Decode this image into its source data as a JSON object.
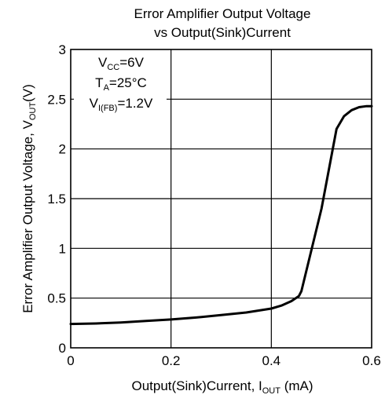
{
  "chart_data": {
    "type": "line",
    "title": [
      "Error Amplifier Output Voltage",
      "vs Output(Sink)Current"
    ],
    "xlabel": {
      "text": "Output(Sink)Current, I",
      "sub": "OUT",
      "suffix": " (mA)"
    },
    "ylabel": {
      "text": "Error Amplifier Output Voltage, V",
      "sub": "OUT",
      "suffix": "(V)"
    },
    "xlim": [
      0,
      0.6
    ],
    "ylim": [
      0,
      3
    ],
    "xticks": [
      0,
      0.2,
      0.4,
      0.6
    ],
    "xtick_labels": [
      "0",
      "0.2",
      "0.4",
      "0.6"
    ],
    "yticks": [
      0,
      0.5,
      1,
      1.5,
      2,
      2.5,
      3
    ],
    "ytick_labels": [
      "0",
      "0.5",
      "1",
      "1.5",
      "2",
      "2.5",
      "3"
    ],
    "grid": true,
    "annotations": [
      {
        "main": "V",
        "sub": "CC",
        "tail": "=6V"
      },
      {
        "main": "T",
        "sub": "A",
        "tail": "=25°C"
      },
      {
        "main": "V",
        "sub": "I(FB)",
        "tail": "=1.2V"
      }
    ],
    "series": [
      {
        "x": [
          0,
          0.05,
          0.1,
          0.15,
          0.2,
          0.25,
          0.3,
          0.35,
          0.4,
          0.42,
          0.44,
          0.455,
          0.46,
          0.5,
          0.53,
          0.545,
          0.56,
          0.575,
          0.59,
          0.6
        ],
        "y": [
          0.24,
          0.245,
          0.255,
          0.27,
          0.285,
          0.305,
          0.33,
          0.355,
          0.395,
          0.425,
          0.47,
          0.52,
          0.57,
          1.4,
          2.2,
          2.33,
          2.39,
          2.42,
          2.43,
          2.43
        ]
      }
    ],
    "colors": {
      "line": "#000000",
      "grid": "#000000",
      "background": "#ffffff"
    }
  }
}
